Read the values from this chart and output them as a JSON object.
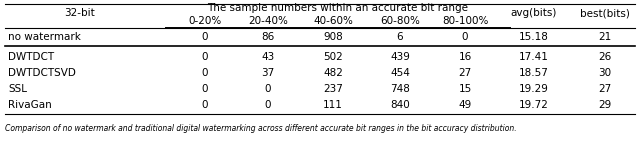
{
  "title_row1": "The sample numbers within an accurate bit range",
  "col0_header": "32-bit",
  "sub_headers": [
    "0-20%",
    "20-40%",
    "40-60%",
    "60-80%",
    "80-100%"
  ],
  "right_headers": [
    "avg(bits)",
    "best(bits)"
  ],
  "rows": [
    [
      "no watermark",
      "0",
      "86",
      "908",
      "6",
      "0",
      "15.18",
      "21"
    ],
    [
      "DWTDCT",
      "0",
      "43",
      "502",
      "439",
      "16",
      "17.41",
      "26"
    ],
    [
      "DWTDCTSVD",
      "0",
      "37",
      "482",
      "454",
      "27",
      "18.57",
      "30"
    ],
    [
      "SSL",
      "0",
      "0",
      "237",
      "748",
      "15",
      "19.29",
      "27"
    ],
    [
      "RivaGan",
      "0",
      "0",
      "111",
      "840",
      "49",
      "19.72",
      "29"
    ]
  ],
  "footnote": "Comparison of no watermark and traditional digital watermarking across different accurate bit ranges in the bit accuracy distribution.",
  "background_color": "#ffffff",
  "line_color": "#000000",
  "text_color": "#000000",
  "font_size": 7.5,
  "footnote_font_size": 5.5
}
